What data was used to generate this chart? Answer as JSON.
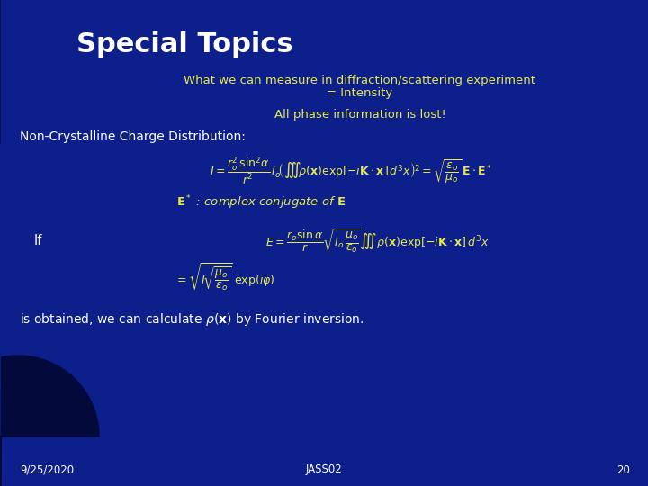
{
  "title": "Special Topics",
  "subtitle1": "What we can measure in diffraction/scattering experiment",
  "subtitle2": "= Intensity",
  "subtitle3": "All phase information is lost!",
  "non_cryst_label": "Non-Crystalline Charge Distribution:",
  "if_label": "If",
  "footer1_pre": "is obtained, we can calculate ",
  "footer1_post": " by Fourier inversion.",
  "date": "9/25/2020",
  "footer_center": "JASS02",
  "page": "20",
  "bg_color": "#0c1f8a",
  "arc_color": "#050f4a",
  "title_color": "#ffffff",
  "yellow_color": "#e8e84a",
  "white_color": "#ffffff",
  "gray_text": "#cccccc"
}
